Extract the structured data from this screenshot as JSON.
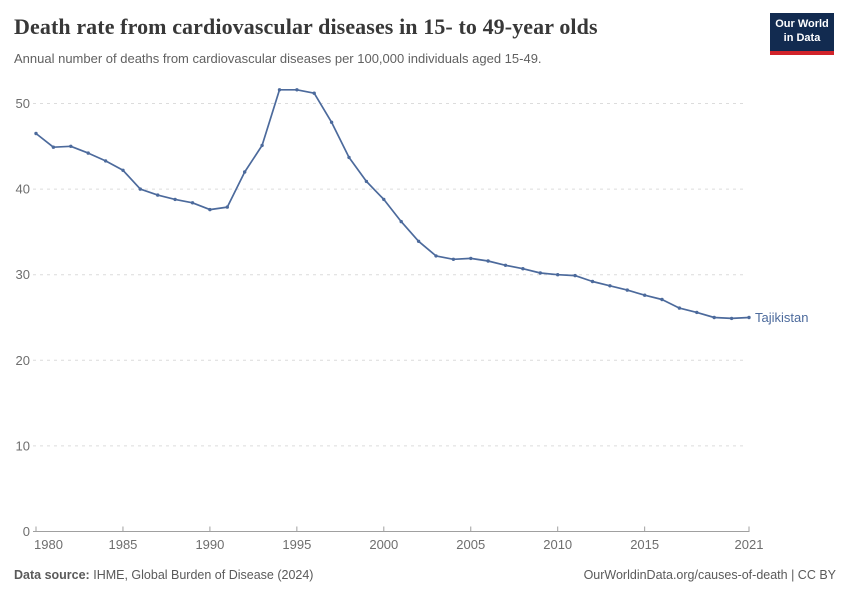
{
  "header": {
    "title": "Death rate from cardiovascular diseases in 15- to 49-year olds",
    "subtitle": "Annual number of deaths from cardiovascular diseases per 100,000 individuals aged 15-49."
  },
  "logo": {
    "line1": "Our World",
    "line2": "in Data",
    "bg_color": "#122B50",
    "bar_color": "#D1232A",
    "text_color": "#FFFFFF"
  },
  "chart_data": {
    "type": "line",
    "title": "Death rate from cardiovascular diseases in 15- to 49-year olds",
    "subtitle": "Annual number of deaths from cardiovascular diseases per 100,000 individuals aged 15-49.",
    "xlabel": "",
    "ylabel": "",
    "x": [
      1980,
      1981,
      1982,
      1983,
      1984,
      1985,
      1986,
      1987,
      1988,
      1989,
      1990,
      1991,
      1992,
      1993,
      1994,
      1995,
      1996,
      1997,
      1998,
      1999,
      2000,
      2001,
      2002,
      2003,
      2004,
      2005,
      2006,
      2007,
      2008,
      2009,
      2010,
      2011,
      2012,
      2013,
      2014,
      2015,
      2016,
      2017,
      2018,
      2019,
      2020,
      2021
    ],
    "series": [
      {
        "name": "Tajikistan",
        "color": "#4C6A9C",
        "values": [
          46.5,
          44.9,
          45.0,
          44.2,
          43.3,
          42.2,
          40.0,
          39.3,
          38.8,
          38.4,
          37.6,
          37.9,
          42.0,
          45.1,
          51.6,
          51.6,
          51.2,
          47.8,
          43.7,
          40.9,
          38.8,
          36.2,
          33.9,
          32.2,
          31.8,
          31.9,
          31.6,
          31.1,
          30.7,
          30.2,
          30.0,
          29.9,
          29.2,
          28.7,
          28.2,
          27.6,
          27.1,
          26.1,
          25.6,
          25.0,
          24.9,
          25.0
        ]
      }
    ],
    "x_ticks": [
      1980,
      1985,
      1990,
      1995,
      2000,
      2005,
      2010,
      2015,
      2021
    ],
    "y_ticks": [
      0,
      10,
      20,
      30,
      40,
      50
    ],
    "xlim": [
      1980,
      2021
    ],
    "ylim": [
      0,
      52.7
    ],
    "grid": "horizontal-dashed",
    "legend_position": "end-of-line-label",
    "colors": {
      "grid_line": "#DCDCDC",
      "axis_line": "#A0A0A0",
      "tick_label": "#6E6E6E"
    }
  },
  "footer": {
    "source_prefix": "Data source:",
    "source_text": "IHME, Global Burden of Disease (2024)",
    "credit": "OurWorldinData.org/causes-of-death | CC BY"
  }
}
